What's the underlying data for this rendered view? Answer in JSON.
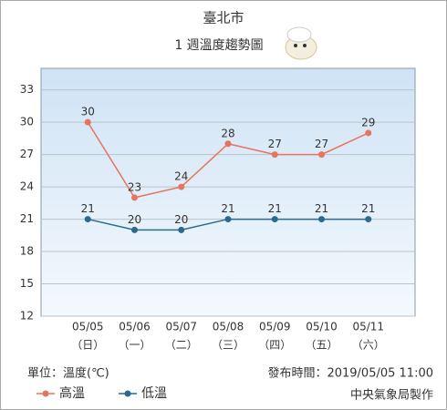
{
  "chart_data": {
    "type": "line",
    "title": "臺北市",
    "subtitle": "1 週溫度趨勢圖",
    "categories": [
      "05/05",
      "05/06",
      "05/07",
      "05/08",
      "05/09",
      "05/10",
      "05/11"
    ],
    "weekdays": [
      "（日）",
      "（一）",
      "（二）",
      "（三）",
      "（四）",
      "（五）",
      "（六）"
    ],
    "series": [
      {
        "name": "高溫",
        "color": "#e8735f",
        "values": [
          30,
          23,
          24,
          28,
          27,
          27,
          29
        ]
      },
      {
        "name": "低溫",
        "color": "#2a6a8e",
        "values": [
          21,
          20,
          20,
          21,
          21,
          21,
          21
        ]
      }
    ],
    "ylim": [
      12,
      35
    ],
    "yticks": [
      12,
      15,
      18,
      21,
      24,
      27,
      30,
      33
    ],
    "grid": true,
    "unit_note": "單位：溫度(℃)",
    "issued": "發布時間：2019/05/05 11:00",
    "source": "中央氣象局製作"
  }
}
